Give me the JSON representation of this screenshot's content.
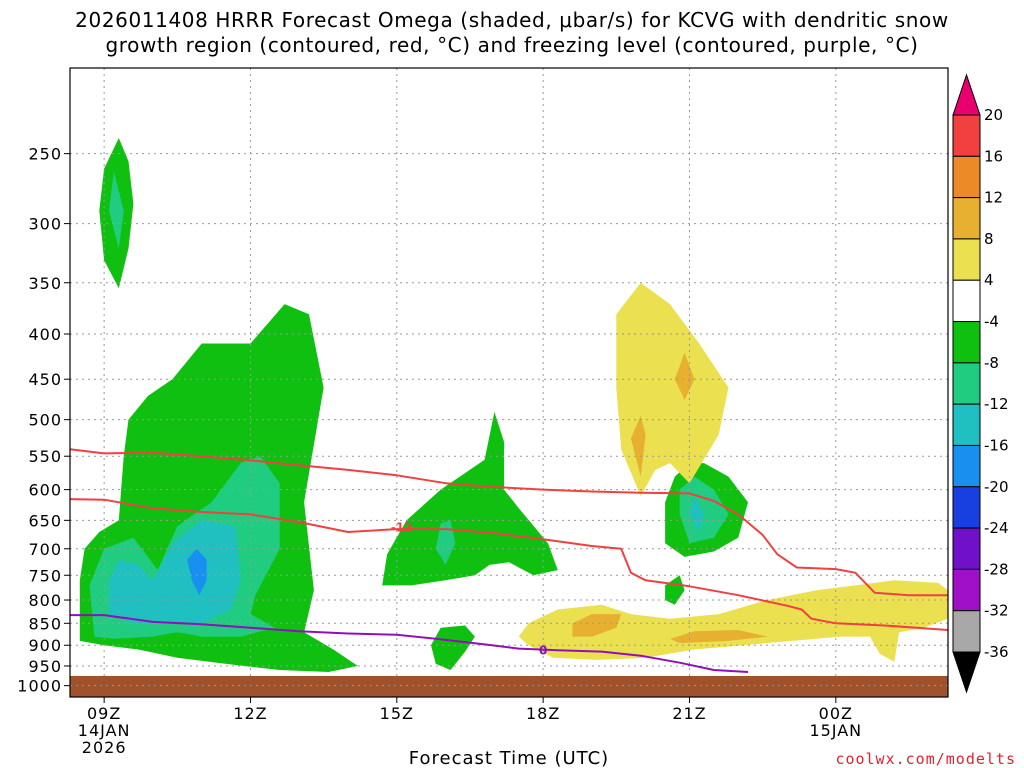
{
  "chart_data": {
    "type": "time-height cross section",
    "title_line1": "2026011408 HRRR Forecast Omega (shaded, μbar/s) for KCVG with dendritic snow",
    "title_line2": "growth region (contoured, red, °C) and freezing level (contoured, purple, °C)",
    "xlabel": "Forecast Time (UTC)",
    "ylabel": "",
    "y_scale": "log-pressure",
    "ylim_hPa": [
      1030,
      200
    ],
    "xlim_hours": [
      8.3,
      26.3
    ],
    "grid": "dashed",
    "x_ticks": [
      {
        "hour": 9,
        "label": "09Z",
        "sub1": "14JAN",
        "sub2": "2026"
      },
      {
        "hour": 12,
        "label": "12Z",
        "sub1": "",
        "sub2": ""
      },
      {
        "hour": 15,
        "label": "15Z",
        "sub1": "",
        "sub2": ""
      },
      {
        "hour": 18,
        "label": "18Z",
        "sub1": "",
        "sub2": ""
      },
      {
        "hour": 21,
        "label": "21Z",
        "sub1": "",
        "sub2": ""
      },
      {
        "hour": 24,
        "label": "00Z",
        "sub1": "15JAN",
        "sub2": ""
      }
    ],
    "y_ticks": [
      250,
      300,
      350,
      400,
      450,
      500,
      550,
      600,
      650,
      700,
      750,
      800,
      850,
      900,
      950,
      1000
    ],
    "ground_level_hPa": 975,
    "colorbar": {
      "levels": [
        20,
        16,
        12,
        8,
        4,
        -4,
        -8,
        -12,
        -16,
        -20,
        -24,
        -28,
        -32,
        -36
      ],
      "colors": [
        "#e8006e",
        "#f04040",
        "#ec8a28",
        "#e8b030",
        "#ebe050",
        "#ffffff",
        "#10c010",
        "#20cc80",
        "#20c0c0",
        "#1890f0",
        "#1840e0",
        "#7010c8",
        "#a010c8",
        "#a8a8a8",
        "#000000"
      ]
    },
    "omega_regions": [
      {
        "level": -8,
        "color": "#10c010",
        "points": [
          [
            8.5,
            890
          ],
          [
            8.5,
            760
          ],
          [
            8.6,
            700
          ],
          [
            8.9,
            670
          ],
          [
            9.3,
            650
          ],
          [
            9.4,
            550
          ],
          [
            9.5,
            500
          ],
          [
            9.9,
            470
          ],
          [
            10.4,
            450
          ],
          [
            11.0,
            410
          ],
          [
            12.0,
            410
          ],
          [
            12.7,
            370
          ],
          [
            13.2,
            380
          ],
          [
            13.5,
            460
          ],
          [
            13.1,
            620
          ],
          [
            13.3,
            780
          ],
          [
            13.1,
            870
          ],
          [
            13.7,
            910
          ],
          [
            14.2,
            950
          ],
          [
            13.6,
            965
          ],
          [
            12.6,
            960
          ],
          [
            11.5,
            945
          ],
          [
            10.5,
            930
          ],
          [
            9.7,
            910
          ],
          [
            9.0,
            900
          ]
        ]
      },
      {
        "level": -12,
        "color": "#20cc80",
        "points": [
          [
            8.8,
            880
          ],
          [
            8.7,
            770
          ],
          [
            9.0,
            700
          ],
          [
            9.6,
            680
          ],
          [
            10.1,
            740
          ],
          [
            10.5,
            660
          ],
          [
            11.2,
            620
          ],
          [
            11.8,
            560
          ],
          [
            12.2,
            550
          ],
          [
            12.6,
            590
          ],
          [
            12.6,
            700
          ],
          [
            12.1,
            790
          ],
          [
            12.0,
            830
          ],
          [
            12.5,
            860
          ],
          [
            11.8,
            880
          ],
          [
            11.0,
            880
          ],
          [
            10.5,
            870
          ],
          [
            10.0,
            880
          ],
          [
            9.2,
            885
          ]
        ]
      },
      {
        "level": -16,
        "color": "#20c0c0",
        "points": [
          [
            9.1,
            830
          ],
          [
            9.1,
            760
          ],
          [
            9.3,
            720
          ],
          [
            9.7,
            730
          ],
          [
            10.0,
            760
          ],
          [
            10.4,
            690
          ],
          [
            11.0,
            650
          ],
          [
            11.7,
            660
          ],
          [
            11.8,
            760
          ],
          [
            11.6,
            820
          ],
          [
            11.0,
            850
          ],
          [
            10.3,
            850
          ],
          [
            9.6,
            850
          ]
        ]
      },
      {
        "level": -20,
        "color": "#1890f0",
        "points": [
          [
            10.8,
            760
          ],
          [
            10.7,
            720
          ],
          [
            10.9,
            700
          ],
          [
            11.1,
            720
          ],
          [
            11.1,
            760
          ],
          [
            10.95,
            790
          ]
        ]
      },
      {
        "level": -8,
        "color": "#10c010",
        "points": [
          [
            8.9,
            290
          ],
          [
            9.0,
            260
          ],
          [
            9.3,
            240
          ],
          [
            9.5,
            255
          ],
          [
            9.6,
            285
          ],
          [
            9.5,
            320
          ],
          [
            9.3,
            355
          ],
          [
            9.0,
            330
          ]
        ]
      },
      {
        "level": -12,
        "color": "#20cc80",
        "points": [
          [
            9.1,
            290
          ],
          [
            9.2,
            262
          ],
          [
            9.4,
            290
          ],
          [
            9.3,
            320
          ]
        ]
      },
      {
        "level": -8,
        "color": "#10c010",
        "points": [
          [
            14.7,
            770
          ],
          [
            14.8,
            710
          ],
          [
            15.2,
            650
          ],
          [
            15.9,
            600
          ],
          [
            16.8,
            555
          ],
          [
            17.0,
            490
          ],
          [
            17.2,
            530
          ],
          [
            17.2,
            600
          ],
          [
            17.5,
            630
          ],
          [
            18.1,
            690
          ],
          [
            18.3,
            740
          ],
          [
            17.8,
            750
          ],
          [
            17.3,
            725
          ],
          [
            16.9,
            730
          ],
          [
            16.6,
            750
          ],
          [
            16.0,
            760
          ],
          [
            15.3,
            770
          ]
        ]
      },
      {
        "level": -12,
        "color": "#20cc80",
        "points": [
          [
            15.8,
            700
          ],
          [
            15.9,
            655
          ],
          [
            16.1,
            650
          ],
          [
            16.2,
            690
          ],
          [
            16.0,
            730
          ]
        ]
      },
      {
        "level": -8,
        "color": "#10c010",
        "points": [
          [
            15.7,
            900
          ],
          [
            15.9,
            860
          ],
          [
            16.4,
            855
          ],
          [
            16.6,
            880
          ],
          [
            16.4,
            915
          ],
          [
            16.1,
            960
          ],
          [
            15.8,
            945
          ]
        ]
      },
      {
        "level": -8,
        "color": "#10c010",
        "points": [
          [
            20.5,
            770
          ],
          [
            20.8,
            750
          ],
          [
            20.9,
            780
          ],
          [
            20.7,
            810
          ],
          [
            20.5,
            800
          ]
        ]
      },
      {
        "level": -8,
        "color": "#10c010",
        "points": [
          [
            20.5,
            620
          ],
          [
            20.7,
            580
          ],
          [
            21.0,
            560
          ],
          [
            21.3,
            560
          ],
          [
            21.8,
            580
          ],
          [
            22.2,
            620
          ],
          [
            22.0,
            680
          ],
          [
            21.5,
            705
          ],
          [
            20.9,
            715
          ],
          [
            20.5,
            690
          ]
        ]
      },
      {
        "level": -12,
        "color": "#20cc80",
        "points": [
          [
            20.8,
            640
          ],
          [
            20.8,
            600
          ],
          [
            21.1,
            580
          ],
          [
            21.5,
            600
          ],
          [
            21.8,
            640
          ],
          [
            21.5,
            680
          ],
          [
            21.0,
            690
          ]
        ]
      },
      {
        "level": -16,
        "color": "#20c0c0",
        "points": [
          [
            21.0,
            640
          ],
          [
            21.1,
            610
          ],
          [
            21.3,
            640
          ],
          [
            21.2,
            670
          ]
        ]
      },
      {
        "level": 4,
        "color": "#ebe050",
        "points": [
          [
            19.5,
            380
          ],
          [
            20.0,
            350
          ],
          [
            20.6,
            370
          ],
          [
            21.2,
            410
          ],
          [
            21.8,
            460
          ],
          [
            21.6,
            520
          ],
          [
            21.0,
            590
          ],
          [
            20.6,
            560
          ],
          [
            20.3,
            570
          ],
          [
            20.0,
            610
          ],
          [
            19.6,
            540
          ],
          [
            19.5,
            460
          ]
        ]
      },
      {
        "level": 8,
        "color": "#e8b030",
        "points": [
          [
            19.8,
            525
          ],
          [
            20.0,
            495
          ],
          [
            20.1,
            520
          ],
          [
            20.0,
            580
          ]
        ]
      },
      {
        "level": 8,
        "color": "#e8b030",
        "points": [
          [
            20.7,
            450
          ],
          [
            20.9,
            420
          ],
          [
            21.1,
            450
          ],
          [
            20.9,
            475
          ]
        ]
      },
      {
        "level": 4,
        "color": "#ebe050",
        "points": [
          [
            17.5,
            880
          ],
          [
            17.7,
            850
          ],
          [
            18.3,
            820
          ],
          [
            19.2,
            810
          ],
          [
            19.8,
            830
          ],
          [
            20.6,
            840
          ],
          [
            21.6,
            830
          ],
          [
            22.6,
            800
          ],
          [
            23.6,
            780
          ],
          [
            24.4,
            770
          ],
          [
            25.2,
            760
          ],
          [
            26.1,
            765
          ],
          [
            26.3,
            780
          ],
          [
            26.3,
            840
          ],
          [
            25.8,
            860
          ],
          [
            25.3,
            870
          ],
          [
            25.2,
            940
          ],
          [
            24.9,
            920
          ],
          [
            24.7,
            880
          ],
          [
            24.1,
            880
          ],
          [
            23.1,
            890
          ],
          [
            22.1,
            900
          ],
          [
            21.1,
            910
          ],
          [
            20.1,
            930
          ],
          [
            19.1,
            935
          ],
          [
            18.2,
            930
          ],
          [
            17.7,
            900
          ]
        ]
      },
      {
        "level": 8,
        "color": "#e8b030",
        "points": [
          [
            18.6,
            850
          ],
          [
            19.0,
            830
          ],
          [
            19.6,
            830
          ],
          [
            19.5,
            860
          ],
          [
            19.0,
            880
          ],
          [
            18.6,
            880
          ]
        ]
      },
      {
        "level": 8,
        "color": "#e8b030",
        "points": [
          [
            20.6,
            885
          ],
          [
            21.1,
            868
          ],
          [
            22.0,
            865
          ],
          [
            22.6,
            880
          ],
          [
            21.8,
            890
          ],
          [
            20.8,
            895
          ]
        ]
      }
    ],
    "contours": [
      {
        "name": "-16 °C isotherm",
        "color": "#f04040",
        "label": "",
        "points": [
          [
            8.3,
            540
          ],
          [
            9.0,
            546
          ],
          [
            10.0,
            545
          ],
          [
            11.0,
            550
          ],
          [
            12.0,
            556
          ],
          [
            13.0,
            563
          ],
          [
            14.0,
            570
          ],
          [
            15.0,
            578
          ],
          [
            16.0,
            590
          ],
          [
            17.0,
            596
          ],
          [
            18.0,
            600
          ],
          [
            19.0,
            603
          ],
          [
            20.0,
            605
          ],
          [
            21.0,
            606
          ],
          [
            21.5,
            618
          ],
          [
            22.0,
            640
          ],
          [
            22.5,
            675
          ],
          [
            22.8,
            710
          ],
          [
            23.2,
            735
          ],
          [
            24.0,
            738
          ],
          [
            24.4,
            745
          ],
          [
            24.8,
            785
          ],
          [
            25.5,
            790
          ],
          [
            26.3,
            790
          ]
        ]
      },
      {
        "name": "-12 °C isotherm",
        "color": "#f04040",
        "label": "-12",
        "label_at": [
          15.1,
          662
        ],
        "points": [
          [
            8.3,
            615
          ],
          [
            9.0,
            616
          ],
          [
            10.0,
            630
          ],
          [
            11.0,
            636
          ],
          [
            12.0,
            640
          ],
          [
            13.0,
            653
          ],
          [
            14.0,
            670
          ],
          [
            15.0,
            665
          ],
          [
            16.0,
            665
          ],
          [
            17.0,
            672
          ],
          [
            18.0,
            683
          ],
          [
            19.0,
            695
          ],
          [
            19.6,
            700
          ],
          [
            19.8,
            745
          ],
          [
            20.1,
            760
          ],
          [
            21.0,
            772
          ],
          [
            22.0,
            790
          ],
          [
            23.0,
            812
          ],
          [
            23.3,
            820
          ],
          [
            23.5,
            840
          ],
          [
            24.0,
            850
          ],
          [
            25.0,
            855
          ],
          [
            26.3,
            865
          ]
        ]
      },
      {
        "name": "0 °C isotherm",
        "color": "#9010b8",
        "label": "0",
        "label_at": [
          18.0,
          912
        ],
        "points": [
          [
            8.3,
            832
          ],
          [
            9.0,
            832
          ],
          [
            10.0,
            847
          ],
          [
            11.0,
            852
          ],
          [
            12.0,
            860
          ],
          [
            13.0,
            868
          ],
          [
            14.0,
            873
          ],
          [
            15.0,
            876
          ],
          [
            15.8,
            885
          ],
          [
            16.8,
            898
          ],
          [
            17.5,
            908
          ],
          [
            18.3,
            912
          ],
          [
            19.2,
            915
          ],
          [
            20.0,
            925
          ],
          [
            20.8,
            942
          ],
          [
            21.5,
            960
          ],
          [
            22.2,
            965
          ]
        ]
      }
    ],
    "watermark": "coolwx.com/modelts"
  }
}
